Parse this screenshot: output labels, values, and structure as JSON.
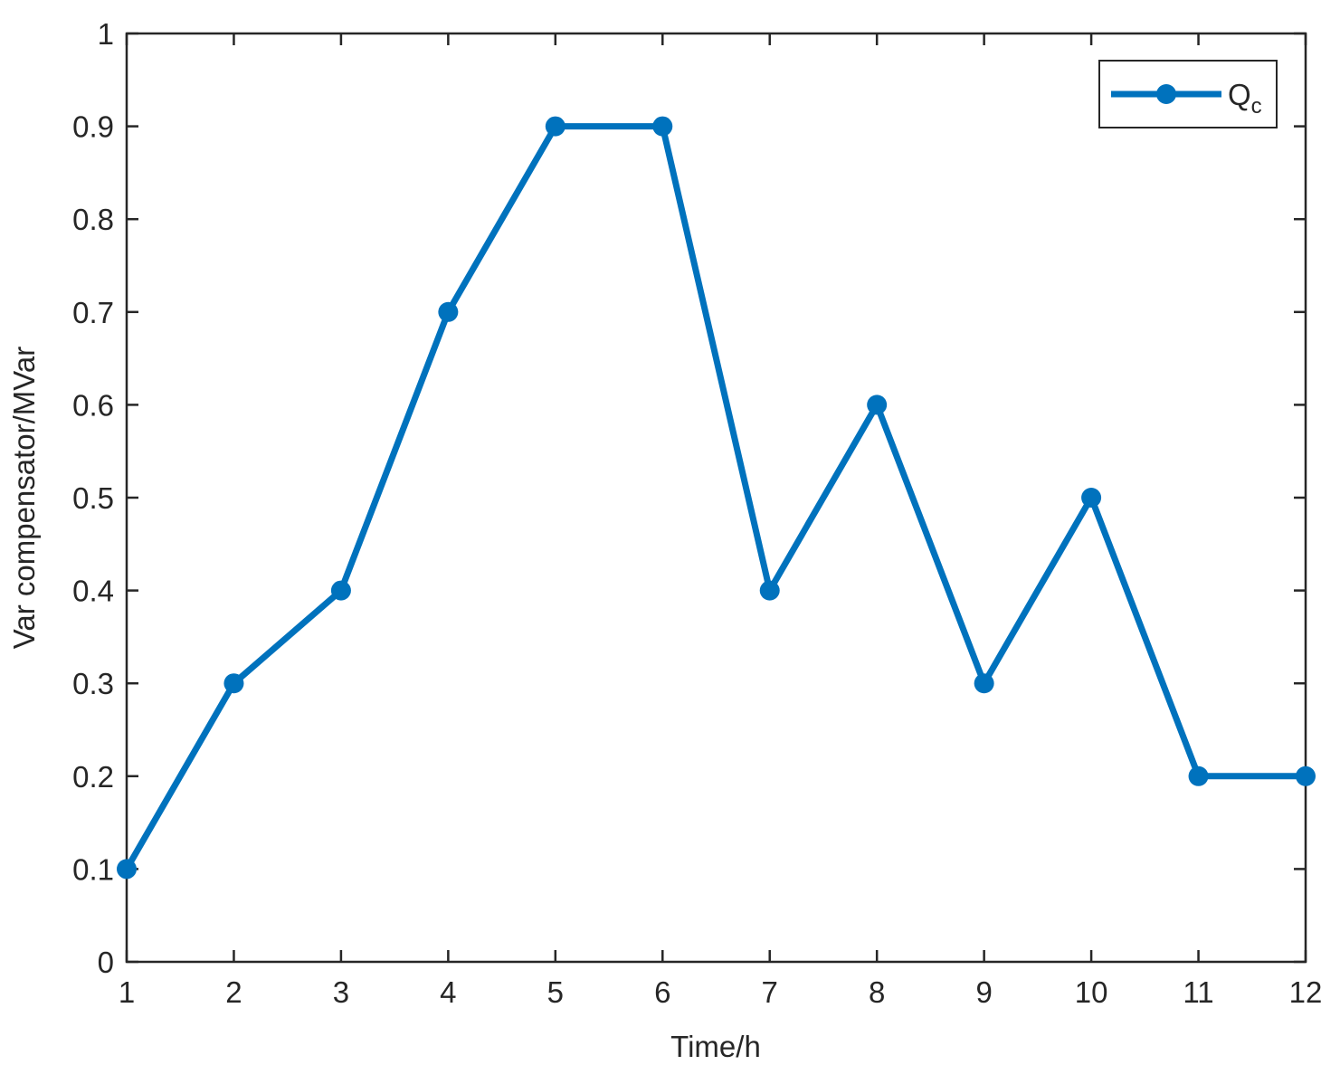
{
  "chart_data": {
    "type": "line",
    "x_label": "Time/h",
    "y_label": "Var compensator/MVar",
    "x": [
      1,
      2,
      3,
      4,
      5,
      6,
      7,
      8,
      9,
      10,
      11,
      12
    ],
    "series": [
      {
        "name": "Qc",
        "color": "#0072bd",
        "values": [
          0.1,
          0.3,
          0.4,
          0.7,
          0.9,
          0.9,
          0.4,
          0.6,
          0.3,
          0.5,
          0.2,
          0.2
        ]
      }
    ],
    "xlim": [
      1,
      12
    ],
    "xticks": [
      1,
      2,
      3,
      4,
      5,
      6,
      7,
      8,
      9,
      10,
      11,
      12
    ],
    "ylim": [
      0,
      1
    ],
    "yticks": [
      0,
      0.1,
      0.2,
      0.3,
      0.4,
      0.5,
      0.6,
      0.7,
      0.8,
      0.9,
      1
    ],
    "legend": "upper right",
    "grid": false
  }
}
